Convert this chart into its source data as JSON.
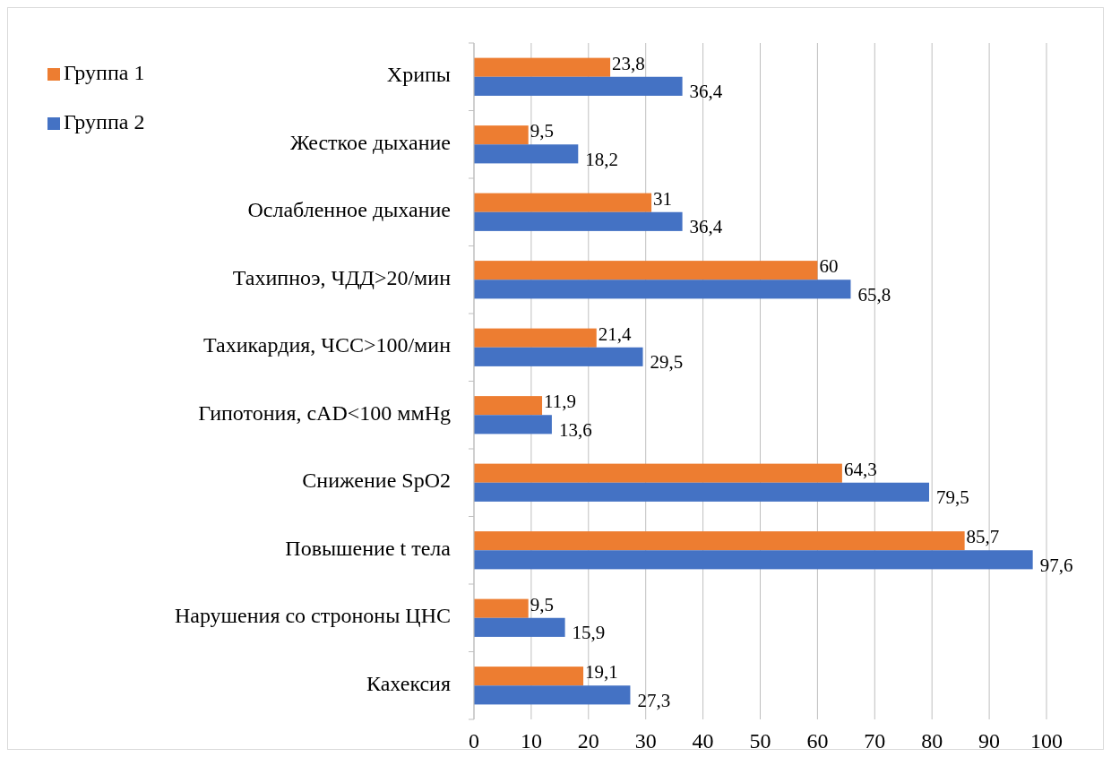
{
  "chart_data": {
    "type": "bar",
    "orientation": "horizontal",
    "categories": [
      "Хрипы",
      "Жесткое дыхание",
      "Ослабленное дыхание",
      "Тахипноэ, ЧДД>20/мин",
      "Тахикардия, ЧСС>100/мин",
      "Гипотония, сAD<100 ммHg",
      "Снижение SpO2",
      "Повышение t тела",
      "Нарушения со строноны ЦНС",
      "Кахексия"
    ],
    "series": [
      {
        "name": "Группа 1",
        "color": "#ed7d31",
        "values": [
          23.8,
          9.5,
          31,
          60,
          21.4,
          11.9,
          64.3,
          85.7,
          9.5,
          19.1
        ],
        "value_labels": [
          "23,8",
          "9,5",
          "31",
          "60",
          "21,4",
          "11,9",
          "64,3",
          "85,7",
          "9,5",
          "19,1"
        ]
      },
      {
        "name": "Группа 2",
        "color": "#4472c4",
        "values": [
          36.4,
          18.2,
          36.4,
          65.8,
          29.5,
          13.6,
          79.5,
          97.6,
          15.9,
          27.3
        ],
        "value_labels": [
          "36,4",
          "18,2",
          "36,4",
          "65,8",
          "29,5",
          "13,6",
          "79,5",
          "97,6",
          "15,9",
          "27,3"
        ]
      }
    ],
    "xlim": [
      0,
      100
    ],
    "xticks": [
      0,
      10,
      20,
      30,
      40,
      50,
      60,
      70,
      80,
      90,
      100
    ],
    "grid": "x",
    "legend": "top left"
  }
}
